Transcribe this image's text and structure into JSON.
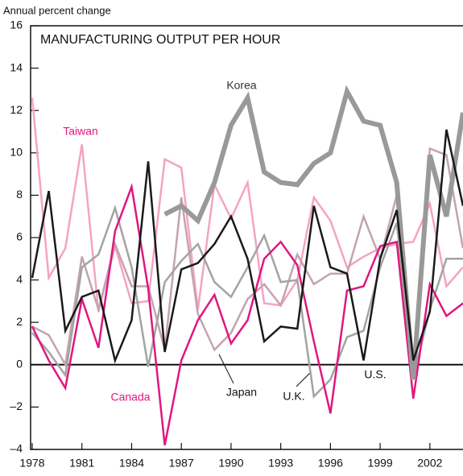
{
  "chart_data": {
    "type": "line",
    "title": "MANUFACTURING OUTPUT PER HOUR",
    "y_label": "Annual percent change",
    "x": [
      1978,
      1979,
      1980,
      1981,
      1982,
      1983,
      1984,
      1985,
      1986,
      1987,
      1988,
      1989,
      1990,
      1991,
      1992,
      1993,
      1994,
      1995,
      1996,
      1997,
      1998,
      1999,
      2000,
      2001,
      2002,
      2003,
      2004
    ],
    "xlim": [
      1978,
      2004
    ],
    "xticks": [
      1978,
      1981,
      1984,
      1987,
      1990,
      1993,
      1996,
      1999,
      2002
    ],
    "ylim": [
      -4,
      16
    ],
    "yticks": [
      {
        "value": -4,
        "label": "–4"
      },
      {
        "value": -2,
        "label": "–2"
      },
      0,
      2,
      4,
      6,
      8,
      10,
      12,
      14,
      16
    ],
    "grid": false,
    "series": [
      {
        "name": "Taiwan",
        "color": "#f5a3c4",
        "values": [
          12.6,
          4.1,
          5.5,
          10.4,
          2.5,
          5.6,
          2.9,
          3.0,
          9.7,
          9.3,
          2.6,
          8.5,
          6.9,
          8.6,
          2.9,
          2.8,
          4.0,
          7.9,
          6.8,
          4.6,
          5.1,
          5.5,
          5.7,
          5.8,
          7.6,
          3.7,
          4.6
        ]
      },
      {
        "name": "Japan",
        "color": "#c4a3ae",
        "values": [
          1.8,
          1.4,
          0.0,
          5.1,
          2.6,
          5.7,
          3.7,
          3.7,
          0.7,
          7.9,
          2.4,
          0.7,
          1.5,
          3.1,
          3.8,
          2.8,
          5.2,
          3.8,
          4.3,
          4.3,
          7.0,
          5.0,
          8.0,
          0.0,
          10.2,
          9.9,
          5.5
        ]
      },
      {
        "name": "U.K.",
        "color": "#a3a3a3",
        "values": [
          1.5,
          0.6,
          -0.5,
          4.6,
          5.2,
          7.4,
          4.6,
          -0.1,
          3.9,
          4.9,
          5.7,
          3.9,
          3.2,
          4.6,
          6.1,
          3.9,
          4.0,
          -1.5,
          -0.7,
          1.3,
          1.6,
          4.6,
          6.7,
          -0.6,
          2.6,
          5.0,
          5.0
        ]
      },
      {
        "name": "Canada",
        "color": "#e0177f",
        "values": [
          1.8,
          0.2,
          -1.1,
          3.1,
          0.8,
          6.3,
          8.4,
          3.6,
          -3.8,
          0.2,
          2.1,
          3.3,
          1.0,
          2.1,
          5.0,
          5.8,
          4.7,
          1.1,
          -2.3,
          3.5,
          3.7,
          5.6,
          5.8,
          -1.6,
          3.8,
          2.3,
          2.9
        ]
      },
      {
        "name": "Korea",
        "color": "#999999",
        "values": [
          null,
          null,
          null,
          null,
          null,
          null,
          null,
          null,
          7.1,
          7.5,
          6.8,
          8.6,
          11.3,
          12.6,
          9.1,
          8.6,
          8.5,
          9.5,
          10.0,
          12.9,
          11.5,
          11.3,
          8.6,
          -0.7,
          9.9,
          7.0,
          11.9
        ]
      },
      {
        "name": "U.S.",
        "color": "#1a1a1a",
        "values": [
          4.1,
          8.2,
          1.6,
          3.2,
          3.5,
          0.2,
          2.1,
          9.6,
          0.6,
          4.5,
          4.8,
          5.7,
          7.0,
          5.0,
          1.1,
          1.8,
          1.7,
          7.5,
          4.6,
          4.3,
          0.2,
          5.0,
          7.3,
          0.2,
          2.5,
          11.1,
          7.5
        ]
      }
    ]
  }
}
